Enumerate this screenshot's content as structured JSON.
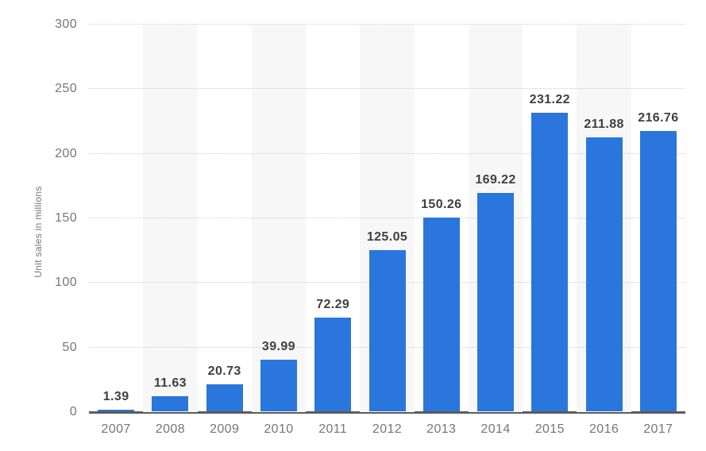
{
  "chart_data": {
    "type": "bar",
    "title": "",
    "xlabel": "",
    "ylabel": "Unit sales in millions",
    "categories": [
      "2007",
      "2008",
      "2009",
      "2010",
      "2011",
      "2012",
      "2013",
      "2014",
      "2015",
      "2016",
      "2017"
    ],
    "values": [
      1.39,
      11.63,
      20.73,
      39.99,
      72.29,
      125.05,
      150.26,
      169.22,
      231.22,
      211.88,
      216.76
    ],
    "value_labels": [
      "1.39",
      "11.63",
      "20.73",
      "39.99",
      "72.29",
      "125.05",
      "150.26",
      "169.22",
      "231.22",
      "211.88",
      "216.76"
    ],
    "ylim": [
      0,
      300
    ],
    "ytick_step": 50,
    "ytick_labels": [
      "0",
      "50",
      "100",
      "150",
      "200",
      "250",
      "300"
    ],
    "grid": "horizontal-dotted",
    "legend_position": "none",
    "plot_bands": "alternating vertical bands behind every second category starting with 2008",
    "colors": {
      "bar": "#2a76dc",
      "band": "#f7f7f7",
      "gridline": "#cccccc",
      "axis_line": "#5c5c5c",
      "value_label": "#3f3f3f",
      "tick_label": "#767676",
      "background": "#ffffff"
    }
  }
}
